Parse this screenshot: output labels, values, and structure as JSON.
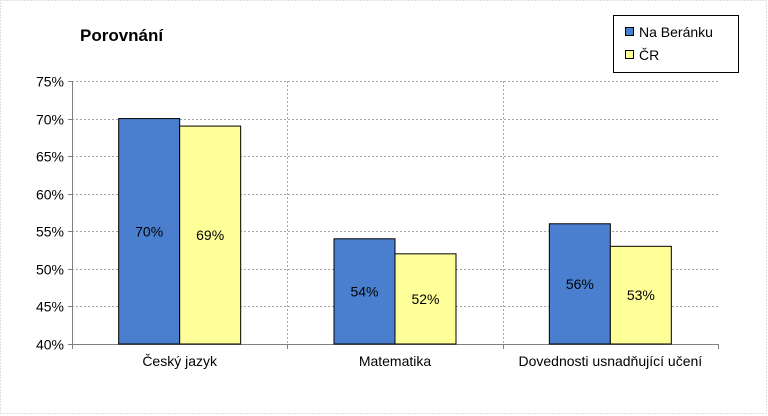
{
  "chart_data": {
    "type": "bar",
    "title": "Porovnání",
    "categories": [
      "Český jazyk",
      "Matematika",
      "Dovednosti usnadňující učení"
    ],
    "series": [
      {
        "name": "Na Beránku",
        "color": "#4a7fd0",
        "values": [
          70,
          54,
          56
        ],
        "labels": [
          "70%",
          "54%",
          "56%"
        ]
      },
      {
        "name": "ČR",
        "color": "#ffff99",
        "values": [
          69,
          52,
          53
        ],
        "labels": [
          "69%",
          "52%",
          "53%"
        ]
      }
    ],
    "ylim": [
      40,
      75
    ],
    "yticks": [
      {
        "value": 40,
        "label": "40%"
      },
      {
        "value": 45,
        "label": "45%"
      },
      {
        "value": 50,
        "label": "50%"
      },
      {
        "value": 55,
        "label": "55%"
      },
      {
        "value": 60,
        "label": "60%"
      },
      {
        "value": 65,
        "label": "65%"
      },
      {
        "value": 70,
        "label": "70%"
      },
      {
        "value": 75,
        "label": "75%"
      }
    ],
    "grid": true,
    "legend_position": "top-right",
    "xlabel": "",
    "ylabel": ""
  }
}
